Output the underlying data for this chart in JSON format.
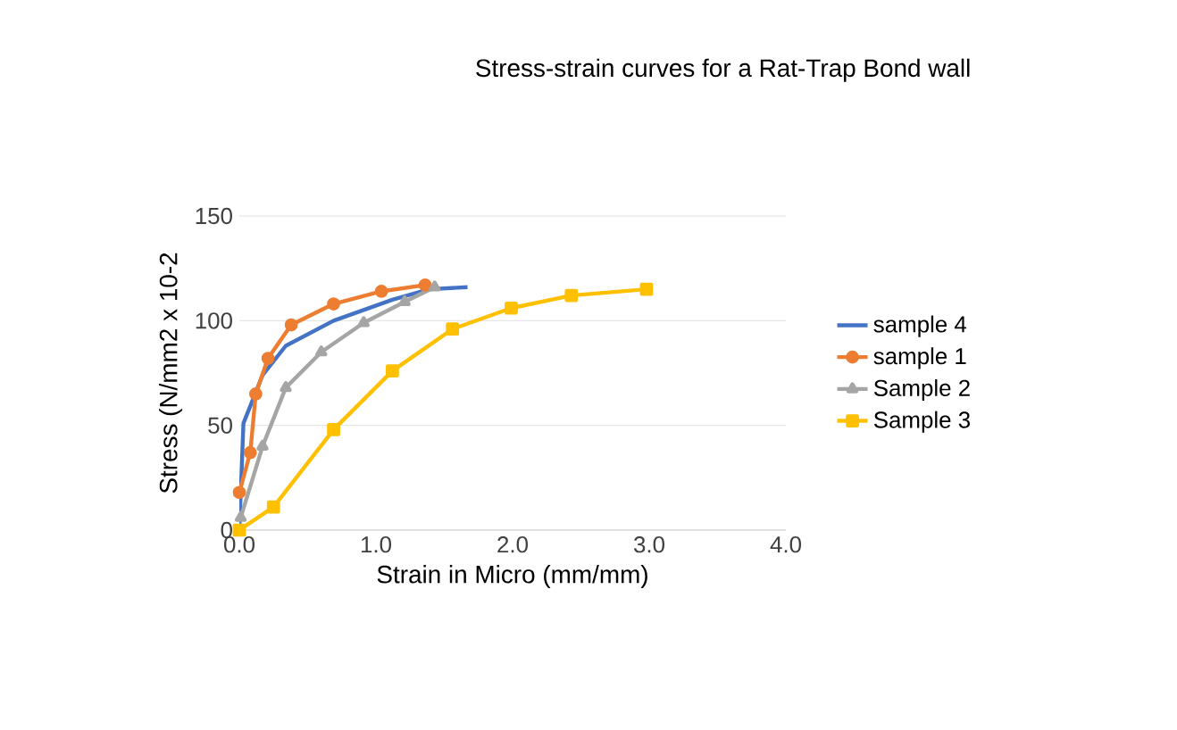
{
  "chart_data": {
    "type": "line",
    "title": "Stress-strain curves for a Rat-Trap Bond wall",
    "xlabel": "Strain in Micro (mm/mm)",
    "ylabel": "Stress (N/mm2 x 10-2",
    "xlim": [
      0,
      4
    ],
    "xticks": [
      {
        "value": 0,
        "label": "0.0"
      },
      {
        "value": 1,
        "label": "1.0"
      },
      {
        "value": 2,
        "label": "2.0"
      },
      {
        "value": 3,
        "label": "3.0"
      },
      {
        "value": 4,
        "label": "4.0"
      }
    ],
    "ylim": [
      0,
      150
    ],
    "yticks": [
      0,
      50,
      100,
      150
    ],
    "grid": "y",
    "legend": "right",
    "series": [
      {
        "name": "sample 4",
        "color": "#4472c4",
        "marker": "none",
        "x": [
          0,
          0.03,
          0.17,
          0.34,
          0.69,
          1.12,
          1.39,
          1.67
        ],
        "values": [
          0,
          51,
          74,
          88,
          100,
          110,
          115,
          116
        ]
      },
      {
        "name": "sample 1",
        "color": "#ed7d31",
        "marker": "circle",
        "x": [
          0,
          0.08,
          0.12,
          0.21,
          0.38,
          0.69,
          1.04,
          1.36
        ],
        "values": [
          18,
          37,
          65,
          82,
          98,
          108,
          114,
          117
        ]
      },
      {
        "name": "Sample 2",
        "color": "#a5a5a5",
        "marker": "triangle",
        "x": [
          0.01,
          0.17,
          0.34,
          0.6,
          0.91,
          1.21,
          1.43
        ],
        "values": [
          6,
          40,
          68,
          85,
          99,
          109,
          116
        ]
      },
      {
        "name": "Sample 3",
        "color": "#ffc000",
        "marker": "square",
        "x": [
          0,
          0.25,
          0.69,
          1.12,
          1.56,
          1.99,
          2.43,
          2.98
        ],
        "values": [
          0,
          11,
          48,
          76,
          96,
          106,
          112,
          115
        ]
      }
    ]
  }
}
